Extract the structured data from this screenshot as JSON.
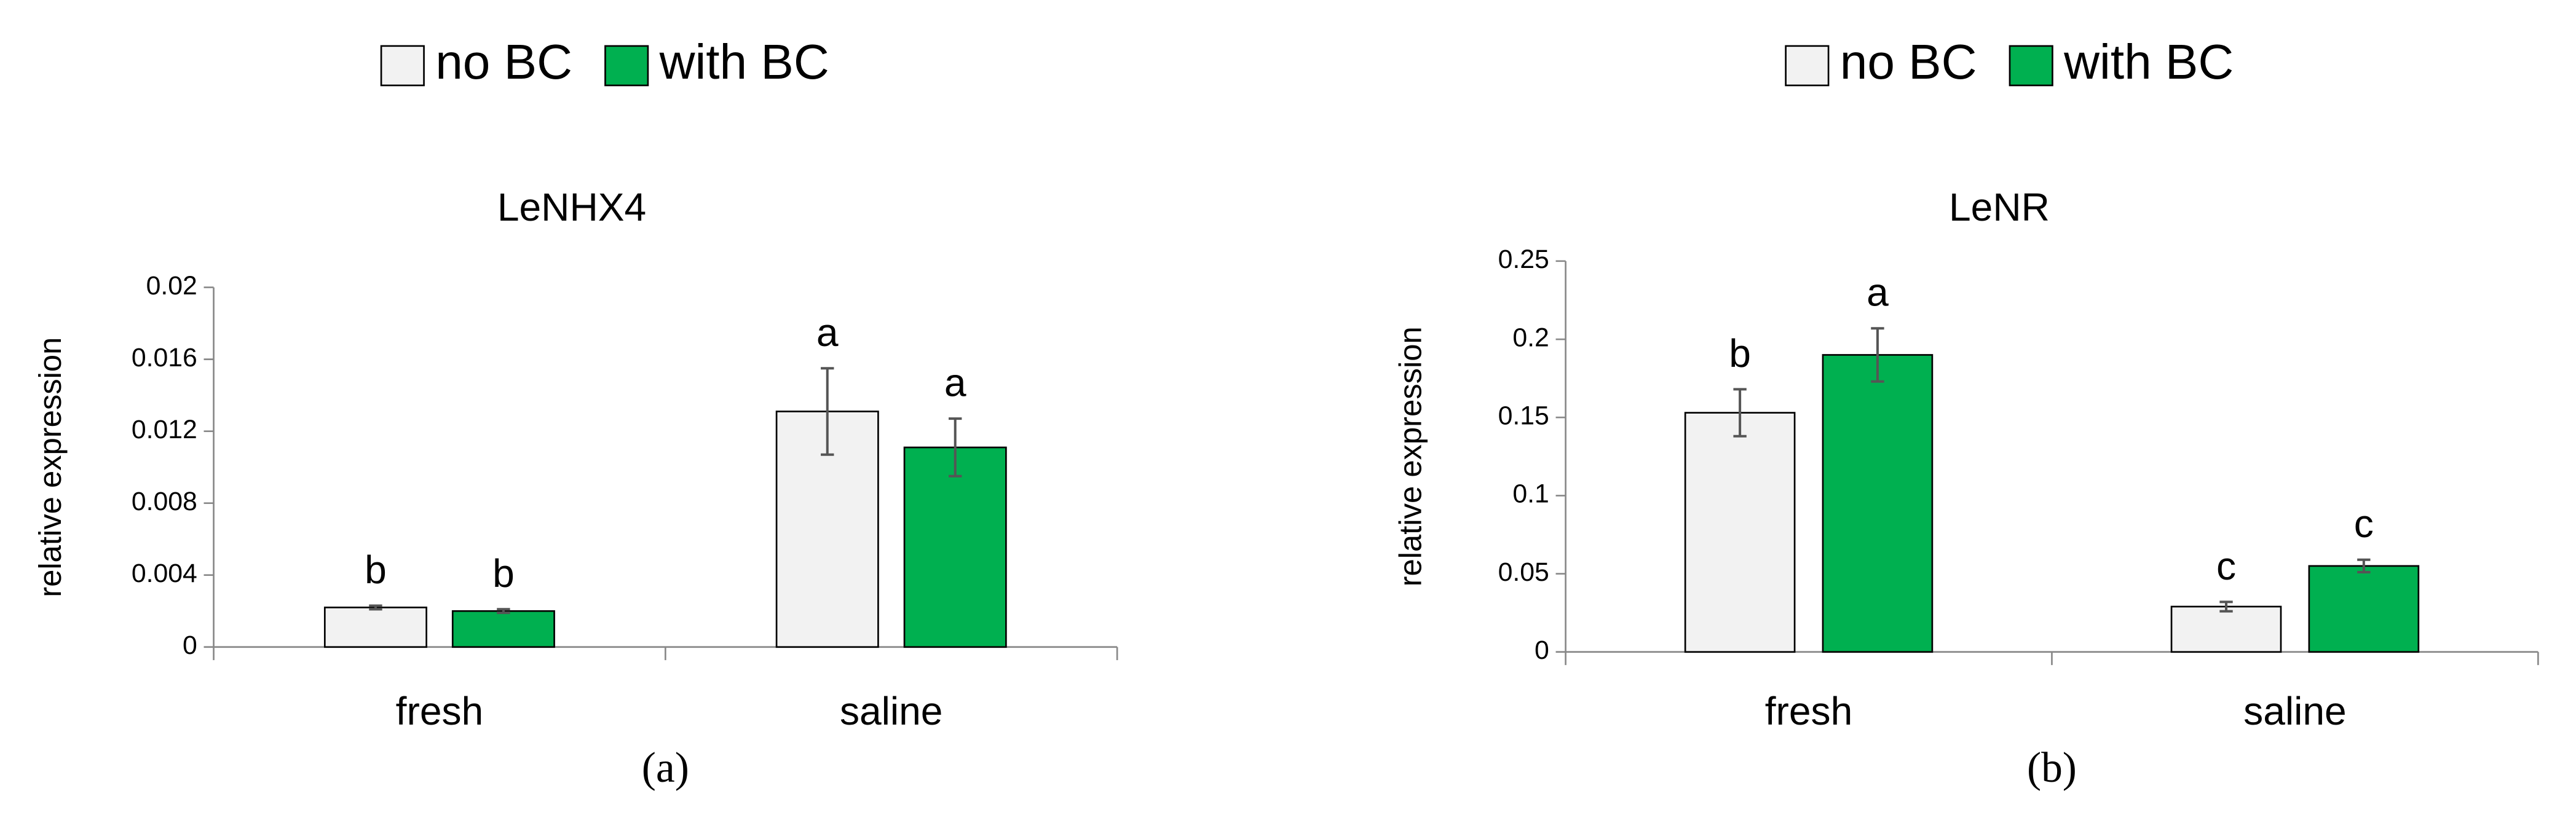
{
  "chart_data": [
    {
      "type": "bar",
      "label": "(a)",
      "title": "LeNHX4",
      "y_label": "relative expression",
      "categories": [
        "fresh",
        "saline"
      ],
      "legend": "top",
      "series": [
        {
          "name": "no BC",
          "color": "#f2f2f2",
          "values": [
            0.0022,
            0.0131
          ],
          "errors": [
            0.0001,
            0.0024
          ],
          "letters": [
            "b",
            "a"
          ]
        },
        {
          "name": "with BC",
          "color": "#00b050",
          "values": [
            0.002,
            0.0111
          ],
          "errors": [
            0.0001,
            0.0016
          ],
          "letters": [
            "b",
            "a"
          ]
        }
      ],
      "ylim": [
        0,
        0.02
      ],
      "yticks": [
        0,
        0.004,
        0.008,
        0.012,
        0.016,
        0.02
      ],
      "grid": false
    },
    {
      "type": "bar",
      "label": "(b)",
      "title": "LeNR",
      "y_label": "relative expression",
      "categories": [
        "fresh",
        "saline"
      ],
      "legend": "top",
      "series": [
        {
          "name": "no BC",
          "color": "#f2f2f2",
          "values": [
            0.153,
            0.029
          ],
          "errors": [
            0.015,
            0.003
          ],
          "letters": [
            "b",
            "c"
          ]
        },
        {
          "name": "with BC",
          "color": "#00b050",
          "values": [
            0.19,
            0.055
          ],
          "errors": [
            0.017,
            0.004
          ],
          "letters": [
            "a",
            "c"
          ]
        }
      ],
      "ylim": [
        0,
        0.25
      ],
      "yticks": [
        0,
        0.05,
        0.1,
        0.15,
        0.2,
        0.25
      ],
      "grid": false
    }
  ]
}
